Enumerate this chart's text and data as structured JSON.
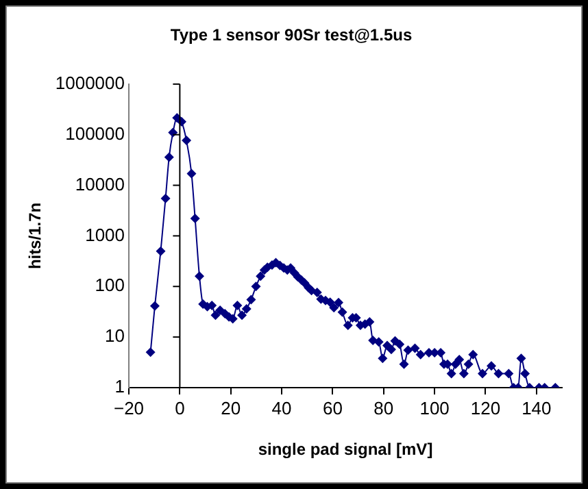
{
  "chart_data": {
    "type": "line",
    "title": "Type 1 sensor 90Sr test@1.5us",
    "xlabel": "single pad signal [mV]",
    "ylabel": "hits/1.7n",
    "x": [
      -11.5,
      -9.8,
      -7.5,
      -5.6,
      -4.2,
      -2.7,
      -1.1,
      0.7,
      2.6,
      4.6,
      6,
      7.7,
      9.1,
      10.8,
      12.6,
      14,
      15.8,
      17.7,
      19.3,
      20.8,
      22.6,
      24.4,
      26.2,
      28,
      29.9,
      31.7,
      33.2,
      34.4,
      36.2,
      37.7,
      39.3,
      40.8,
      42.2,
      43.5,
      45,
      46.3,
      47.7,
      49,
      50.5,
      51.7,
      53.9,
      55.4,
      57.2,
      59,
      60.5,
      62.3,
      63.8,
      66,
      67.8,
      69.2,
      70.9,
      72.7,
      74.5,
      75.8,
      78.1,
      79.6,
      81.4,
      83,
      84.5,
      86.3,
      88,
      89.6,
      92.3,
      94.5,
      97.8,
      100,
      102.4,
      103.7,
      105.1,
      106.6,
      108.2,
      109.7,
      111.5,
      113.3,
      115.1,
      118.8,
      122.3,
      125.1,
      129.1,
      131,
      132.8,
      134,
      135.5,
      137.3,
      141,
      143.2,
      147.4
    ],
    "series": [
      {
        "color": "#000080",
        "values": [
          5,
          41,
          500,
          5500,
          36000,
          110000,
          215000,
          180000,
          77000,
          17000,
          2200,
          160,
          45,
          40,
          42,
          27,
          34,
          29,
          25,
          23,
          42,
          27,
          36,
          55,
          100,
          160,
          212,
          240,
          265,
          295,
          260,
          232,
          212,
          232,
          185,
          155,
          135,
          117,
          95,
          83,
          76,
          56,
          53,
          49,
          38,
          48,
          31,
          17,
          24,
          24,
          17,
          18,
          20,
          8.6,
          8,
          3.8,
          6.8,
          5.7,
          8.4,
          7.2,
          2.9,
          5.5,
          6,
          4.5,
          4.9,
          4.9,
          4.9,
          2.9,
          2.9,
          1.9,
          2.9,
          3.6,
          1.9,
          2.9,
          4.5,
          1.9,
          2.7,
          1.9,
          1.9,
          1,
          1,
          3.8,
          1.9,
          1,
          1,
          1,
          1
        ]
      }
    ],
    "xlim": [
      -20,
      150
    ],
    "xticks": [
      -20,
      0,
      20,
      40,
      60,
      80,
      100,
      120,
      140
    ],
    "ylim": [
      1,
      1000000
    ],
    "yticks": [
      1,
      10,
      100,
      1000,
      10000,
      100000,
      1000000
    ],
    "log": "y",
    "legend": false,
    "marker": "diamond",
    "line_style": "solid"
  }
}
